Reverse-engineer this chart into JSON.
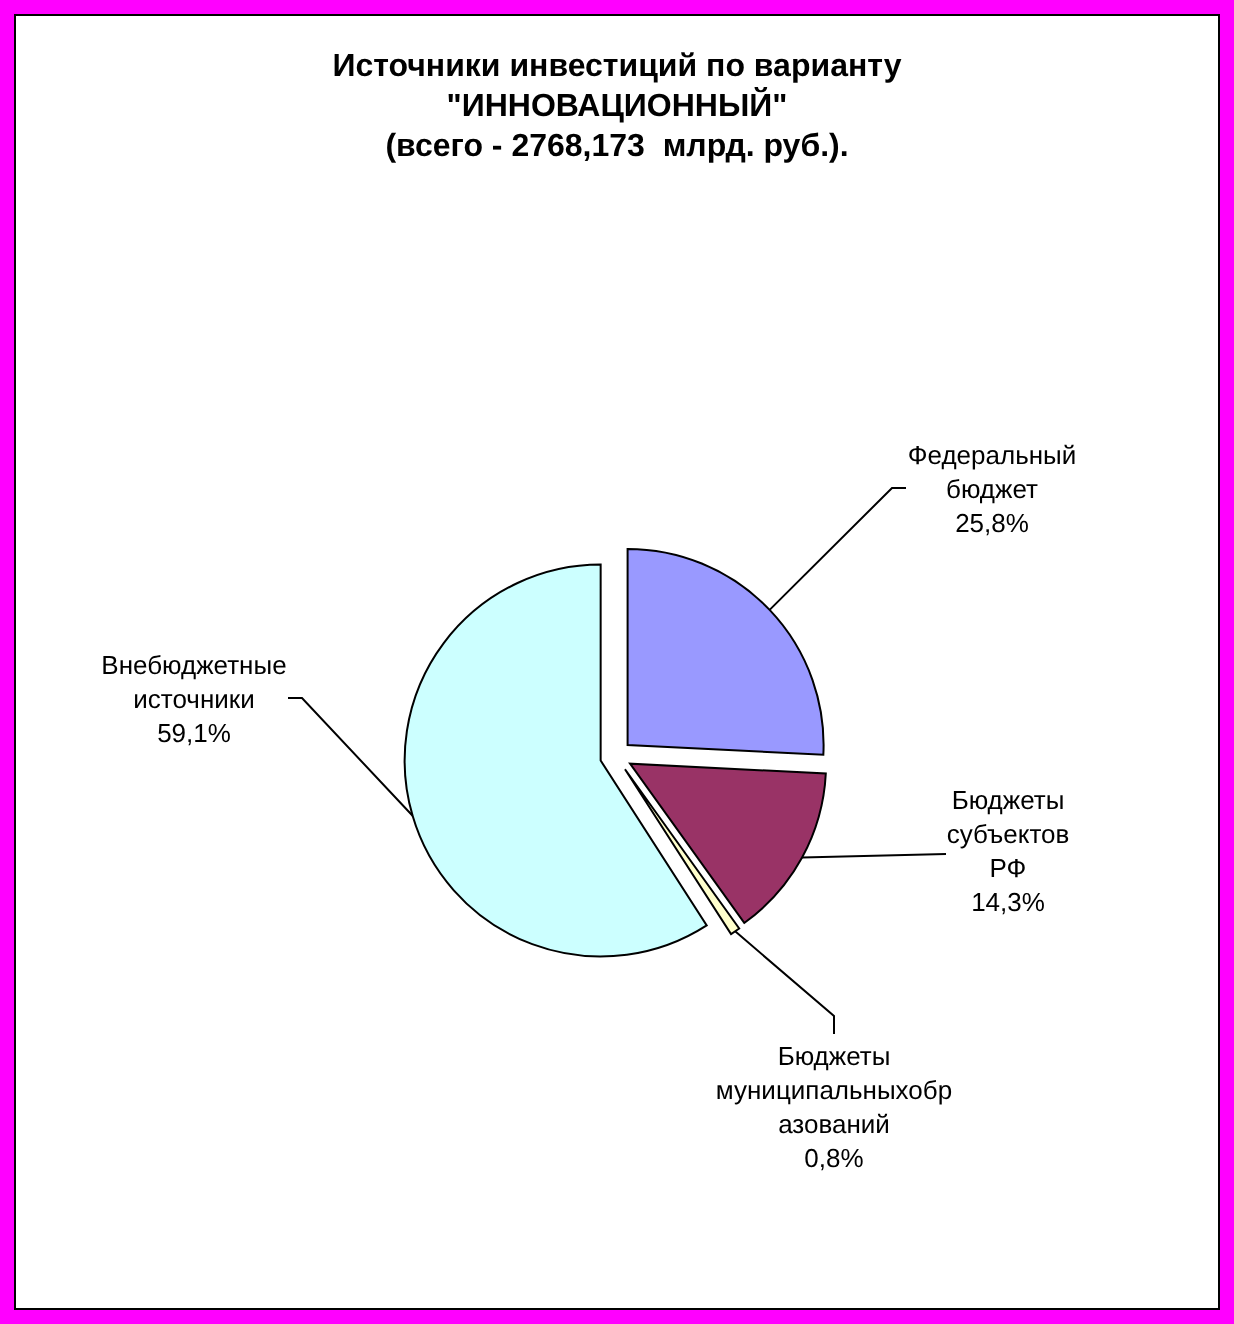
{
  "chart_data": {
    "type": "pie",
    "title": "Источники инвестиций по варианту\n\"ИННОВАЦИОННЫЙ\"\n(всего - 2768,173  млрд. руб.).",
    "categories": [
      "Федеральный бюджет",
      "Бюджеты субъектов РФ",
      "Бюджеты муниципальныхобразований",
      "Внебюджетные источники"
    ],
    "values": [
      25.8,
      14.3,
      0.8,
      59.1
    ],
    "colors": [
      "#9999ff",
      "#993366",
      "#ffffcc",
      "#ccffff"
    ],
    "value_labels": [
      "25,8%",
      "14,3%",
      "0,8%",
      "59,1%"
    ]
  }
}
